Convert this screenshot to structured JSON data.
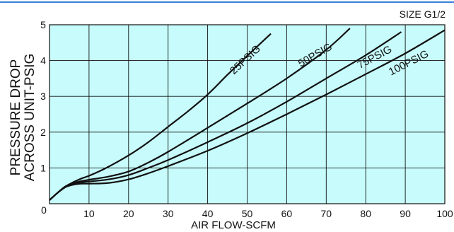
{
  "chart_data": {
    "type": "line",
    "size_label": "SIZE G1/2",
    "xlabel": "AIR FLOW-SCFM",
    "ylabel_lines": [
      "PRESSURE DROP",
      "ACROSS UNIT-PSIG"
    ],
    "xlim": [
      0,
      100
    ],
    "ylim": [
      0,
      5
    ],
    "x_ticks": [
      10,
      20,
      30,
      40,
      50,
      60,
      70,
      80,
      90,
      100
    ],
    "y_ticks": [
      1,
      2,
      3,
      4,
      5
    ],
    "origin_label": "0",
    "grid": true,
    "background_color": "#c8fcfc",
    "line_color": "#111111",
    "series": [
      {
        "name": "25PSIG",
        "x": [
          0,
          2,
          4,
          6,
          8,
          10,
          14,
          20,
          25,
          30,
          35,
          40,
          45,
          50,
          56
        ],
        "y": [
          0.1,
          0.3,
          0.48,
          0.6,
          0.7,
          0.78,
          0.98,
          1.35,
          1.72,
          2.15,
          2.58,
          3.05,
          3.6,
          4.13,
          4.75
        ]
      },
      {
        "name": "50PSIG",
        "x": [
          0,
          2,
          4,
          6,
          8,
          10,
          15,
          20,
          25,
          30,
          40,
          50,
          60,
          70,
          76
        ],
        "y": [
          0.1,
          0.3,
          0.48,
          0.57,
          0.63,
          0.67,
          0.76,
          0.9,
          1.15,
          1.45,
          2.12,
          2.8,
          3.5,
          4.3,
          4.9
        ]
      },
      {
        "name": "75PSIG",
        "x": [
          0,
          2,
          4,
          6,
          8,
          10,
          15,
          20,
          25,
          30,
          40,
          50,
          60,
          70,
          80,
          89
        ],
        "y": [
          0.1,
          0.3,
          0.47,
          0.56,
          0.6,
          0.62,
          0.68,
          0.8,
          1.0,
          1.22,
          1.72,
          2.25,
          2.85,
          3.5,
          4.15,
          4.8
        ]
      },
      {
        "name": "100PSIG",
        "x": [
          0,
          2,
          4,
          6,
          8,
          10,
          15,
          20,
          25,
          30,
          40,
          50,
          60,
          70,
          80,
          90,
          100
        ],
        "y": [
          0.1,
          0.3,
          0.46,
          0.53,
          0.56,
          0.56,
          0.58,
          0.68,
          0.85,
          1.05,
          1.48,
          1.97,
          2.5,
          3.05,
          3.62,
          4.2,
          4.85
        ]
      }
    ]
  }
}
